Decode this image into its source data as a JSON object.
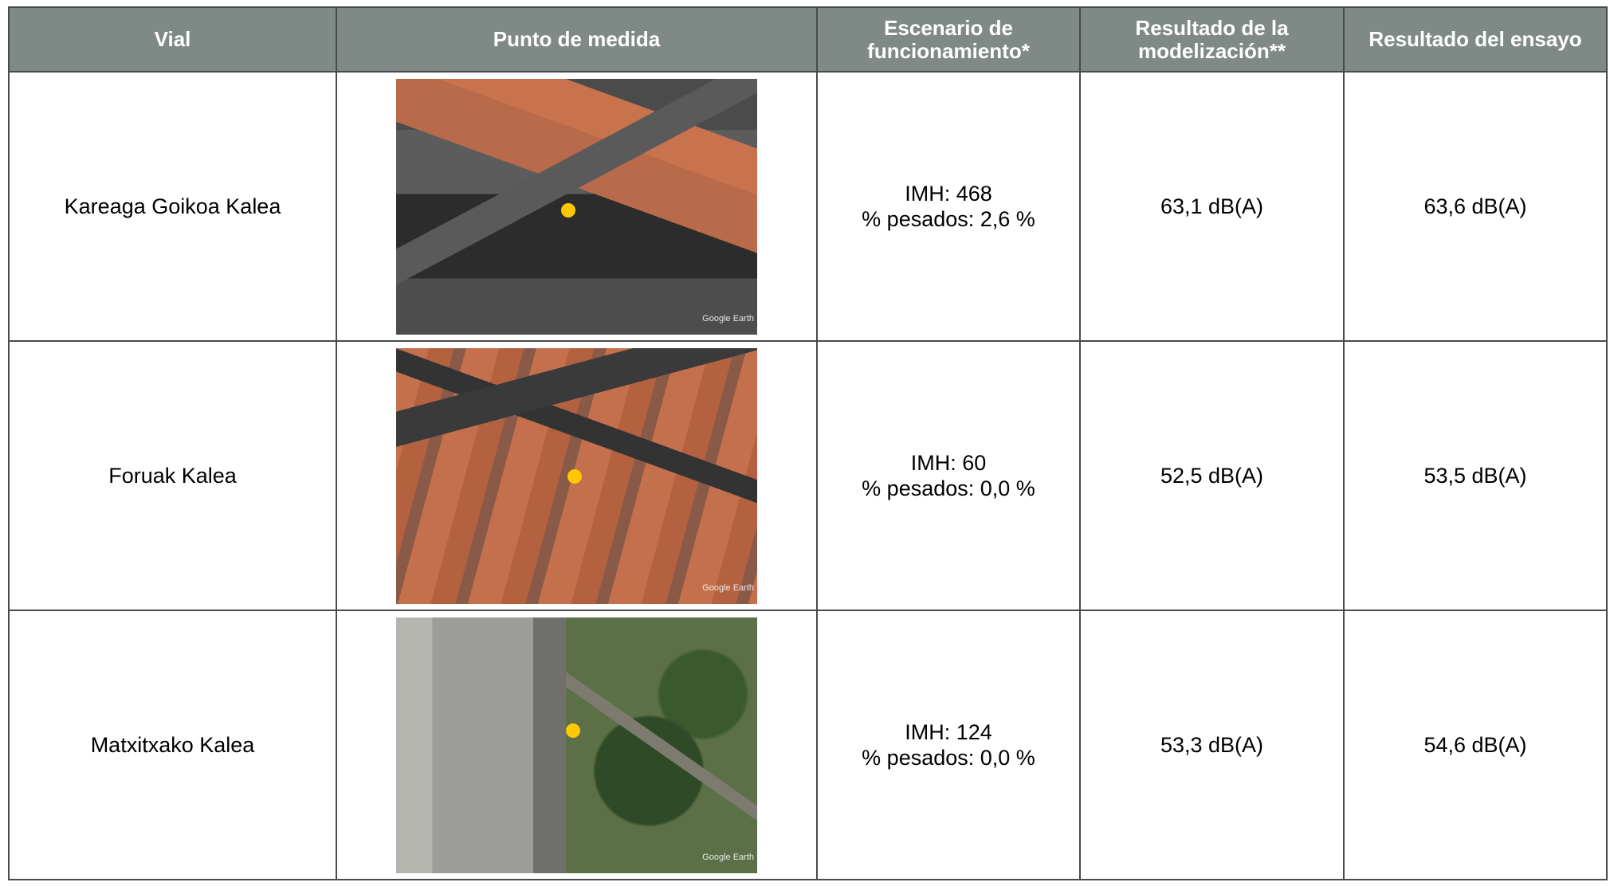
{
  "table": {
    "headers": [
      "Vial",
      "Punto de medida",
      "Escenario de funcionamiento*",
      "Resultado de la modelización**",
      "Resultado del ensayo"
    ],
    "rows": [
      {
        "vial": "Kareaga Goikoa Kalea",
        "image_credit": "Google Earth",
        "escenario": [
          "IMH: 468",
          "% pesados: 2,6 %"
        ],
        "modelizacion": "63,1 dB(A)",
        "ensayo": "63,6 dB(A)"
      },
      {
        "vial": "Foruak Kalea",
        "image_credit": "Google Earth",
        "escenario": [
          "IMH: 60",
          "% pesados: 0,0 %"
        ],
        "modelizacion": "52,5 dB(A)",
        "ensayo": "53,5 dB(A)"
      },
      {
        "vial": "Matxitxako Kalea",
        "image_credit": "Google Earth",
        "escenario": [
          "IMH: 124",
          "% pesados: 0,0 %"
        ],
        "modelizacion": "53,3 dB(A)",
        "ensayo": "54,6 dB(A)"
      }
    ]
  }
}
